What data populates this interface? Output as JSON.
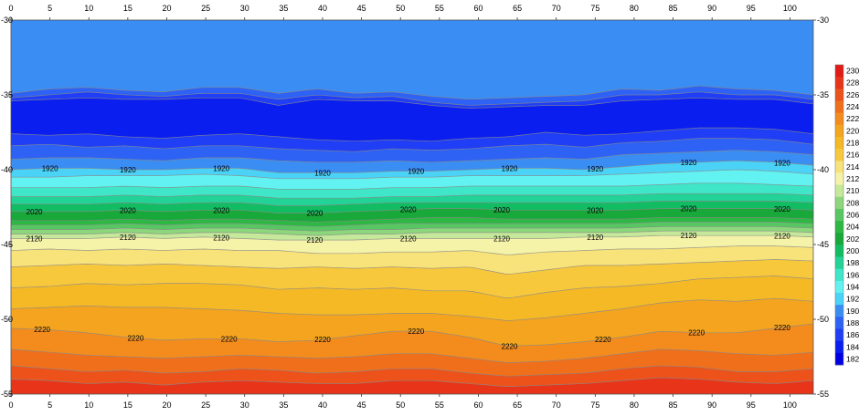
{
  "chart_data": {
    "type": "contour",
    "title": "",
    "xlabel": "",
    "ylabel": "",
    "xlim": [
      0,
      103
    ],
    "ylim": [
      -55,
      -30
    ],
    "x_ticks": [
      0,
      5,
      10,
      15,
      20,
      25,
      30,
      35,
      40,
      45,
      50,
      55,
      60,
      65,
      70,
      75,
      80,
      85,
      90,
      95,
      100
    ],
    "y_ticks": [
      -30,
      -35,
      -40,
      -45,
      -50,
      -55
    ],
    "x_tick_labels": [
      "0",
      "5",
      "10",
      "15",
      "20",
      "25",
      "30",
      "35",
      "40",
      "45",
      "50",
      "55",
      "60",
      "65",
      "70",
      "75",
      "80",
      "85",
      "90",
      "95",
      "100"
    ],
    "y_tick_labels": [
      "-30",
      "-35",
      "-40",
      "-45",
      "-50",
      "-55"
    ],
    "grid": false,
    "colorbar": {
      "min": 1820,
      "max": 2300,
      "step": 20,
      "labels": [
        "2300",
        "2280",
        "2260",
        "2240",
        "2220",
        "2200",
        "2180",
        "2160",
        "2140",
        "2120",
        "2100",
        "2080",
        "2060",
        "2040",
        "2020",
        "2000",
        "1980",
        "1960",
        "1940",
        "1920",
        "1900",
        "1880",
        "1860",
        "1840",
        "1820"
      ],
      "colors": {
        "1820": "#0000e6",
        "1840": "#0a1ef0",
        "1860": "#1f3ef5",
        "1880": "#2d62f5",
        "1900": "#3a8df2",
        "1920": "#4bd2f7",
        "1940": "#62f2f2",
        "1960": "#3fe6c8",
        "1980": "#22d296",
        "2000": "#12bc62",
        "2020": "#19a83a",
        "2040": "#2cb843",
        "2060": "#57c762",
        "2080": "#8cd67c",
        "2100": "#c6e89a",
        "2120": "#f5f3a8",
        "2140": "#f8e27a",
        "2160": "#f8c83c",
        "2180": "#f5b926",
        "2200": "#f4a41e",
        "2220": "#f48c1d",
        "2240": "#f06f1b",
        "2260": "#ec521a",
        "2280": "#e83418",
        "2300": "#e21b16"
      }
    },
    "labeled_levels": [
      {
        "level": "1920",
        "x": [
          5,
          15,
          27,
          40,
          52,
          64,
          75,
          87,
          99
        ]
      },
      {
        "level": "2020",
        "x": [
          3,
          15,
          27,
          39,
          51,
          63,
          75,
          87,
          99
        ]
      },
      {
        "level": "2120",
        "x": [
          3,
          15,
          27,
          39,
          51,
          63,
          75,
          87,
          99
        ]
      },
      {
        "level": "2220",
        "x": [
          4,
          16,
          28,
          40,
          52,
          64,
          76,
          88,
          99
        ]
      }
    ],
    "bands": [
      {
        "value": 1900,
        "y_top": [
          -30,
          -30,
          -30,
          -30,
          -30,
          -30,
          -30,
          -30,
          -30,
          -30,
          -30,
          -30,
          -30,
          -30,
          -30,
          -30,
          -30,
          -30,
          -30,
          -30,
          -30,
          -30
        ]
      },
      {
        "value": 1880,
        "y_top": [
          -34.9,
          -34.6,
          -34.5,
          -34.7,
          -34.8,
          -34.5,
          -34.5,
          -34.9,
          -34.6,
          -34.9,
          -34.8,
          -35.1,
          -35.3,
          -35.2,
          -35.1,
          -35.0,
          -34.6,
          -34.7,
          -34.4,
          -34.6,
          -34.7,
          -35.0
        ]
      },
      {
        "value": 1860,
        "y_top": [
          -35.2,
          -35.0,
          -34.8,
          -35.0,
          -35.1,
          -34.9,
          -34.9,
          -35.3,
          -35.0,
          -35.2,
          -35.1,
          -35.5,
          -35.7,
          -35.6,
          -35.5,
          -35.4,
          -35.0,
          -35.0,
          -34.8,
          -35.0,
          -35.0,
          -35.3
        ]
      },
      {
        "value": 1840,
        "y_top": [
          -35.4,
          -35.3,
          -35.2,
          -35.3,
          -35.3,
          -35.2,
          -35.2,
          -35.7,
          -35.3,
          -35.4,
          -35.4,
          -35.7,
          -35.9,
          -35.8,
          -35.7,
          -35.7,
          -35.4,
          -35.3,
          -35.2,
          -35.3,
          -35.3,
          -35.6
        ]
      },
      {
        "value": 1860,
        "y_top": [
          -37.6,
          -37.7,
          -37.6,
          -37.8,
          -37.9,
          -37.7,
          -37.6,
          -37.8,
          -38.0,
          -38.1,
          -38.0,
          -38.1,
          -37.9,
          -37.8,
          -37.5,
          -37.7,
          -37.6,
          -37.4,
          -37.2,
          -37.2,
          -37.3,
          -37.6
        ]
      },
      {
        "value": 1880,
        "y_top": [
          -38.4,
          -38.3,
          -38.5,
          -38.4,
          -38.6,
          -38.4,
          -38.4,
          -38.6,
          -38.7,
          -38.8,
          -38.6,
          -38.7,
          -38.6,
          -38.4,
          -38.3,
          -38.5,
          -38.2,
          -38.1,
          -37.9,
          -37.9,
          -38.0,
          -38.3
        ]
      },
      {
        "value": 1900,
        "y_top": [
          -39.3,
          -39.2,
          -39.2,
          -39.3,
          -39.4,
          -39.2,
          -39.2,
          -39.4,
          -39.5,
          -39.5,
          -39.4,
          -39.5,
          -39.4,
          -39.3,
          -39.2,
          -39.3,
          -39.0,
          -38.9,
          -38.8,
          -38.7,
          -38.8,
          -39.0
        ]
      },
      {
        "value": 1920,
        "y_top": [
          -40.0,
          -39.9,
          -39.9,
          -40.0,
          -40.0,
          -39.9,
          -39.9,
          -40.2,
          -40.2,
          -40.2,
          -40.1,
          -40.1,
          -40.0,
          -39.9,
          -39.9,
          -40.0,
          -39.8,
          -39.6,
          -39.5,
          -39.4,
          -39.5,
          -39.7
        ]
      },
      {
        "value": 1940,
        "y_top": [
          -40.5,
          -40.5,
          -40.4,
          -40.4,
          -40.4,
          -40.3,
          -40.4,
          -40.6,
          -40.6,
          -40.6,
          -40.5,
          -40.5,
          -40.4,
          -40.4,
          -40.4,
          -40.4,
          -40.3,
          -40.2,
          -40.1,
          -40.0,
          -40.1,
          -40.3
        ]
      },
      {
        "value": 1960,
        "y_top": [
          -41.2,
          -41.2,
          -41.2,
          -41.1,
          -41.2,
          -41.1,
          -41.1,
          -41.3,
          -41.3,
          -41.3,
          -41.2,
          -41.2,
          -41.1,
          -41.1,
          -41.1,
          -41.1,
          -41.1,
          -41.0,
          -40.9,
          -40.9,
          -41.0,
          -41.1
        ]
      },
      {
        "value": 1980,
        "y_top": [
          -41.8,
          -41.8,
          -41.8,
          -41.7,
          -41.8,
          -41.7,
          -41.7,
          -41.9,
          -41.9,
          -41.9,
          -41.8,
          -41.8,
          -41.7,
          -41.7,
          -41.7,
          -41.7,
          -41.7,
          -41.6,
          -41.6,
          -41.6,
          -41.6,
          -41.7
        ]
      },
      {
        "value": 2000,
        "y_top": [
          -42.3,
          -42.3,
          -42.3,
          -42.2,
          -42.3,
          -42.2,
          -42.2,
          -42.4,
          -42.4,
          -42.3,
          -42.2,
          -42.2,
          -42.2,
          -42.2,
          -42.2,
          -42.2,
          -42.2,
          -42.1,
          -42.1,
          -42.1,
          -42.1,
          -42.2
        ]
      },
      {
        "value": 2020,
        "y_top": [
          -42.8,
          -42.8,
          -42.8,
          -42.7,
          -42.8,
          -42.7,
          -42.7,
          -42.9,
          -42.9,
          -42.8,
          -42.7,
          -42.6,
          -42.6,
          -42.7,
          -42.7,
          -42.7,
          -42.7,
          -42.6,
          -42.6,
          -42.6,
          -42.6,
          -42.7
        ]
      },
      {
        "value": 2040,
        "y_top": [
          -43.4,
          -43.4,
          -43.4,
          -43.3,
          -43.4,
          -43.3,
          -43.3,
          -43.4,
          -43.5,
          -43.4,
          -43.3,
          -43.2,
          -43.2,
          -43.3,
          -43.3,
          -43.3,
          -43.3,
          -43.2,
          -43.2,
          -43.2,
          -43.2,
          -43.3
        ]
      },
      {
        "value": 2060,
        "y_top": [
          -43.7,
          -43.7,
          -43.7,
          -43.6,
          -43.7,
          -43.6,
          -43.6,
          -43.7,
          -43.8,
          -43.7,
          -43.6,
          -43.6,
          -43.6,
          -43.6,
          -43.6,
          -43.6,
          -43.6,
          -43.5,
          -43.5,
          -43.5,
          -43.5,
          -43.6
        ]
      },
      {
        "value": 2080,
        "y_top": [
          -44.0,
          -44.0,
          -44.0,
          -43.9,
          -44.0,
          -43.9,
          -43.9,
          -44.0,
          -44.1,
          -44.0,
          -44.0,
          -43.9,
          -43.9,
          -43.9,
          -43.9,
          -43.9,
          -43.9,
          -43.8,
          -43.8,
          -43.8,
          -43.8,
          -43.9
        ]
      },
      {
        "value": 2100,
        "y_top": [
          -44.3,
          -44.3,
          -44.3,
          -44.2,
          -44.3,
          -44.2,
          -44.2,
          -44.3,
          -44.4,
          -44.3,
          -44.3,
          -44.2,
          -44.2,
          -44.2,
          -44.2,
          -44.2,
          -44.2,
          -44.1,
          -44.1,
          -44.1,
          -44.1,
          -44.2
        ]
      },
      {
        "value": 2120,
        "y_top": [
          -44.6,
          -44.6,
          -44.6,
          -44.5,
          -44.6,
          -44.5,
          -44.6,
          -44.7,
          -44.7,
          -44.7,
          -44.6,
          -44.6,
          -44.6,
          -44.6,
          -44.6,
          -44.5,
          -44.5,
          -44.4,
          -44.4,
          -44.4,
          -44.4,
          -44.5
        ]
      },
      {
        "value": 2140,
        "y_top": [
          -45.4,
          -45.3,
          -45.4,
          -45.3,
          -45.4,
          -45.3,
          -45.4,
          -45.4,
          -45.6,
          -45.6,
          -45.5,
          -45.5,
          -45.4,
          -45.7,
          -45.5,
          -45.4,
          -45.3,
          -45.3,
          -45.2,
          -45.1,
          -45.1,
          -45.2
        ]
      },
      {
        "value": 2160,
        "y_top": [
          -46.5,
          -46.4,
          -46.3,
          -46.4,
          -46.3,
          -46.4,
          -46.5,
          -46.6,
          -46.5,
          -46.6,
          -46.5,
          -46.6,
          -46.5,
          -47.0,
          -46.7,
          -46.4,
          -46.4,
          -46.3,
          -46.2,
          -46.1,
          -46.0,
          -46.1
        ]
      },
      {
        "value": 2180,
        "y_top": [
          -47.9,
          -47.8,
          -47.6,
          -47.7,
          -47.6,
          -47.6,
          -47.7,
          -48.0,
          -47.9,
          -48.0,
          -47.9,
          -48.1,
          -48.1,
          -48.6,
          -48.2,
          -47.9,
          -47.8,
          -47.6,
          -47.3,
          -47.2,
          -47.1,
          -47.3
        ]
      },
      {
        "value": 2200,
        "y_top": [
          -49.3,
          -49.2,
          -49.1,
          -49.2,
          -49.2,
          -49.3,
          -49.4,
          -49.6,
          -49.7,
          -49.7,
          -49.6,
          -49.6,
          -49.8,
          -50.1,
          -49.9,
          -49.6,
          -49.3,
          -48.9,
          -48.7,
          -48.8,
          -48.6,
          -48.8
        ]
      },
      {
        "value": 2220,
        "y_top": [
          -50.6,
          -50.7,
          -50.9,
          -51.2,
          -51.4,
          -51.3,
          -51.3,
          -51.5,
          -51.4,
          -51.1,
          -50.8,
          -50.8,
          -51.2,
          -51.8,
          -51.7,
          -51.5,
          -51.2,
          -50.8,
          -50.9,
          -50.9,
          -50.6,
          -50.3
        ]
      },
      {
        "value": 2240,
        "y_top": [
          -52.0,
          -52.2,
          -52.4,
          -52.5,
          -52.6,
          -52.5,
          -52.4,
          -52.5,
          -52.6,
          -52.5,
          -52.3,
          -52.3,
          -52.6,
          -52.9,
          -52.8,
          -52.6,
          -52.3,
          -52.0,
          -52.1,
          -52.3,
          -52.4,
          -52.2
        ]
      },
      {
        "value": 2260,
        "y_top": [
          -53.1,
          -53.3,
          -53.5,
          -53.4,
          -53.6,
          -53.5,
          -53.3,
          -53.4,
          -53.6,
          -53.5,
          -53.3,
          -53.3,
          -53.6,
          -53.8,
          -53.7,
          -53.6,
          -53.3,
          -53.1,
          -53.2,
          -53.5,
          -53.5,
          -53.3
        ]
      },
      {
        "value": 2280,
        "y_top": [
          -54.0,
          -54.1,
          -54.3,
          -54.2,
          -54.4,
          -54.2,
          -54.1,
          -54.2,
          -54.3,
          -54.3,
          -54.1,
          -54.1,
          -54.3,
          -54.5,
          -54.4,
          -54.3,
          -54.1,
          -53.9,
          -54.0,
          -54.2,
          -54.3,
          -54.1
        ]
      }
    ]
  }
}
